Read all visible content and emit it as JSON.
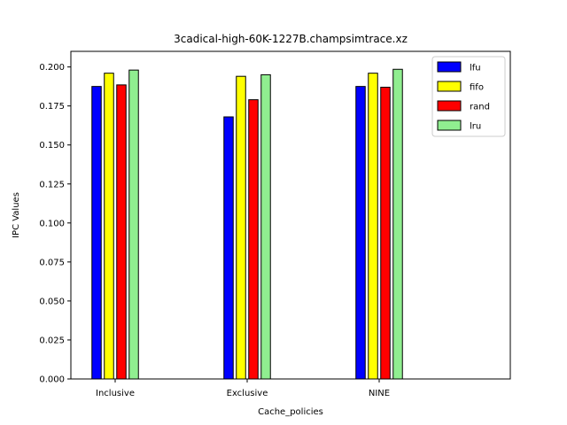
{
  "chart_data": {
    "type": "bar",
    "title": "3cadical-high-60K-1227B.champsimtrace.xz",
    "xlabel": "Cache_policies",
    "ylabel": "IPC Values",
    "categories": [
      "Inclusive",
      "Exclusive",
      "NINE"
    ],
    "series": [
      {
        "name": "lfu",
        "color": "#0000ff",
        "values": [
          0.1875,
          0.168,
          0.1875
        ]
      },
      {
        "name": "fifo",
        "color": "#ffff00",
        "values": [
          0.196,
          0.194,
          0.196
        ]
      },
      {
        "name": "rand",
        "color": "#ff0000",
        "values": [
          0.1885,
          0.179,
          0.187
        ]
      },
      {
        "name": "lru",
        "color": "#90ee90",
        "values": [
          0.198,
          0.195,
          0.1985
        ]
      }
    ],
    "ylim": [
      0,
      0.21
    ],
    "yticks": [
      "0.000",
      "0.025",
      "0.050",
      "0.075",
      "0.100",
      "0.125",
      "0.150",
      "0.175",
      "0.200"
    ],
    "grid": false,
    "legend_position": "top-right"
  }
}
